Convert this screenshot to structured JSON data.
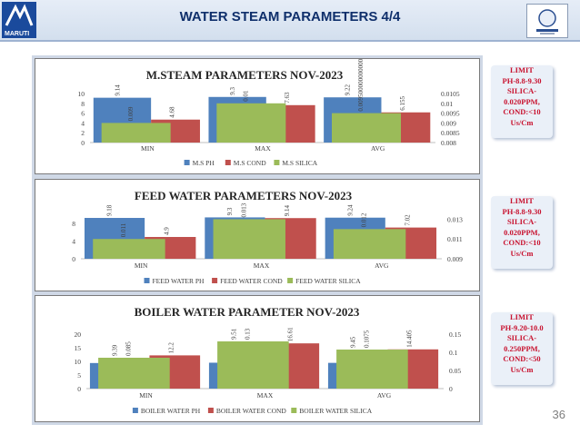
{
  "header": {
    "title": "WATER STEAM PARAMETERS 4/4",
    "logo_text": "MARUTI"
  },
  "page_number": "36",
  "colors": {
    "ph": "#4f81bd",
    "cond": "#c0504d",
    "silica": "#9bbb59"
  },
  "limits": [
    "LIMIT\nPH-8.8-9.30\nSILICA-\n0.020PPM,\nCOND:<10\nUs/Cm",
    "LIMIT\nPH-8.8-9.30\nSILICA-\n0.020PPM,\nCOND:<10\nUs/Cm",
    "LIMIT\nPH-9.20-10.0\nSILICA-\n0.250PPM,\nCOND:<50\nUs/Cm"
  ],
  "chart_data": [
    {
      "type": "bar",
      "title": "M.STEAM PARAMETERS NOV-2023",
      "categories": [
        "MIN",
        "MAX",
        "AVG"
      ],
      "series": [
        {
          "name": "M.S PH",
          "axis": "left",
          "values": [
            9.14,
            9.3,
            9.22
          ],
          "labels": [
            "9.14",
            "9.3",
            "9.22"
          ]
        },
        {
          "name": "M.S COND",
          "axis": "left",
          "values": [
            4.68,
            7.63,
            6.155
          ],
          "labels": [
            "4.68",
            "7.63",
            "6.155"
          ]
        },
        {
          "name": "M.S SILICA",
          "axis": "right",
          "values": [
            0.009,
            0.01,
            0.00950000000000001
          ],
          "labels": [
            "0.009",
            "0.01",
            "0.0095000000000001"
          ]
        }
      ],
      "left_axis": {
        "min": 0,
        "max": 10,
        "ticks": [
          "0",
          "2",
          "4",
          "6",
          "8",
          "10"
        ]
      },
      "right_axis": {
        "min": 0.008,
        "max": 0.0105,
        "ticks": [
          "0.008",
          "0.0085",
          "0.009",
          "0.0095",
          "0.01",
          "0.0105"
        ]
      }
    },
    {
      "type": "bar",
      "title": "FEED WATER PARAMETERS NOV-2023",
      "categories": [
        "MIN",
        "MAX",
        "AVG"
      ],
      "series": [
        {
          "name": "FEED WATER PH",
          "axis": "left",
          "values": [
            9.18,
            9.3,
            9.24
          ],
          "labels": [
            "9.18",
            "9.3",
            "9.24"
          ]
        },
        {
          "name": "FEED WATER COND",
          "axis": "left",
          "values": [
            4.9,
            9.14,
            7.02
          ],
          "labels": [
            "4.9",
            "9.14",
            "7.02"
          ]
        },
        {
          "name": "FEED WATER SILICA",
          "axis": "right",
          "values": [
            0.011,
            0.013,
            0.012
          ],
          "labels": [
            "0.011",
            "0.013",
            "0.012"
          ]
        }
      ],
      "left_axis": {
        "min": 0,
        "max": 10,
        "ticks": [
          "0",
          "4",
          "8"
        ]
      },
      "right_axis": {
        "min": 0.009,
        "max": 0.0135,
        "ticks": [
          "0.009",
          "0.011",
          "0.013"
        ]
      }
    },
    {
      "type": "bar",
      "title": "BOILER WATER PARAMETER NOV-2023",
      "categories": [
        "MIN",
        "MAX",
        "AVG"
      ],
      "series": [
        {
          "name": "BOILER WATER PH",
          "axis": "left",
          "values": [
            9.39,
            9.51,
            9.45
          ],
          "labels": [
            "9.39",
            "9.51",
            "9.45"
          ]
        },
        {
          "name": "BOILER WATER COND",
          "axis": "left",
          "values": [
            12.2,
            16.61,
            14.405
          ],
          "labels": [
            "12.2",
            "16.61",
            "14.405"
          ]
        },
        {
          "name": "BOILER WATER SILICA",
          "axis": "right",
          "values": [
            0.085,
            0.13,
            0.1075
          ],
          "labels": [
            "0.085",
            "0.13",
            "0.1075"
          ]
        }
      ],
      "left_axis": {
        "min": 0,
        "max": 20,
        "ticks": [
          "0",
          "5",
          "10",
          "15",
          "20"
        ]
      },
      "right_axis": {
        "min": 0,
        "max": 0.15,
        "ticks": [
          "0",
          "0.05",
          "0.1",
          "0.15"
        ]
      }
    }
  ]
}
